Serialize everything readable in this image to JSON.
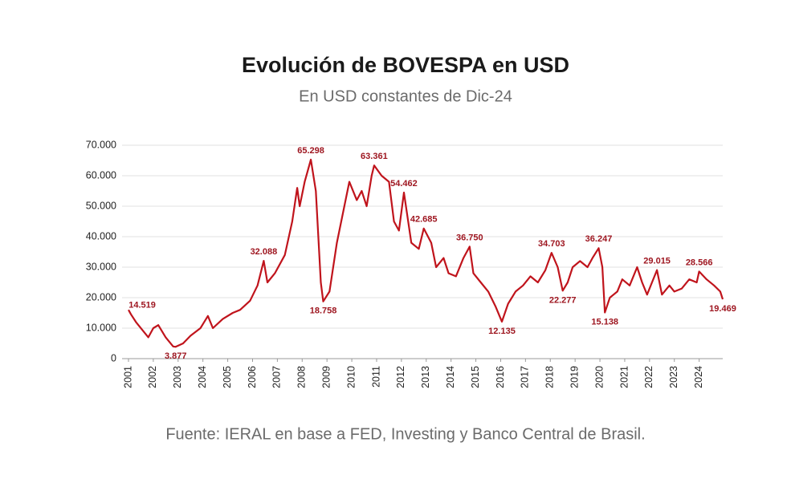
{
  "chart_data": {
    "type": "line",
    "title": "Evolución de BOVESPA en USD",
    "subtitle": "En USD constantes de Dic-24",
    "source": "Fuente: IERAL en base a FED, Investing y Banco Central de Brasil.",
    "xlim": [
      2001,
      2024.95
    ],
    "xticks": [
      2001,
      2002,
      2003,
      2004,
      2005,
      2006,
      2007,
      2008,
      2009,
      2010,
      2011,
      2012,
      2013,
      2014,
      2015,
      2016,
      2017,
      2018,
      2019,
      2020,
      2021,
      2022,
      2023,
      2024
    ],
    "ylim": [
      0,
      70000
    ],
    "yticks": [
      0,
      {
        "value": 10000,
        "label": "10.000"
      },
      {
        "value": 20000,
        "label": "20.000"
      },
      {
        "value": 30000,
        "label": "30.000"
      },
      {
        "value": 40000,
        "label": "40.000"
      },
      {
        "value": 50000,
        "label": "50.000"
      },
      {
        "value": 60000,
        "label": "60.000"
      },
      {
        "value": 70000,
        "label": "70.000"
      }
    ],
    "grid": true,
    "series": [
      {
        "name": "BOVESPA",
        "color": "#c0141c",
        "x": [
          2001.0,
          2001.1,
          2001.3,
          2001.6,
          2001.8,
          2002.0,
          2002.2,
          2002.5,
          2002.8,
          2002.9,
          2003.2,
          2003.5,
          2003.9,
          2004.2,
          2004.4,
          2004.8,
          2005.2,
          2005.5,
          2005.9,
          2006.2,
          2006.45,
          2006.6,
          2006.9,
          2007.3,
          2007.6,
          2007.8,
          2007.9,
          2008.1,
          2008.35,
          2008.55,
          2008.75,
          2008.85,
          2009.1,
          2009.4,
          2009.7,
          2009.9,
          2010.2,
          2010.4,
          2010.6,
          2010.8,
          2010.9,
          2011.2,
          2011.5,
          2011.7,
          2011.9,
          2012.1,
          2012.4,
          2012.7,
          2012.9,
          2013.2,
          2013.4,
          2013.7,
          2013.9,
          2014.2,
          2014.5,
          2014.75,
          2014.9,
          2015.2,
          2015.5,
          2015.8,
          2016.05,
          2016.3,
          2016.6,
          2016.9,
          2017.2,
          2017.5,
          2017.8,
          2018.05,
          2018.3,
          2018.5,
          2018.7,
          2018.9,
          2019.2,
          2019.5,
          2019.7,
          2019.95,
          2020.1,
          2020.2,
          2020.4,
          2020.7,
          2020.9,
          2021.2,
          2021.5,
          2021.7,
          2021.9,
          2022.1,
          2022.3,
          2022.5,
          2022.8,
          2023.0,
          2023.3,
          2023.6,
          2023.9,
          2024.0,
          2024.3,
          2024.6,
          2024.85,
          2024.95
        ],
        "values": [
          16000,
          14519,
          12000,
          9000,
          7000,
          10000,
          11000,
          7000,
          4000,
          3877,
          5000,
          7500,
          10000,
          14000,
          10000,
          13000,
          15000,
          16000,
          19000,
          24000,
          32088,
          25000,
          28000,
          34000,
          45000,
          56000,
          50000,
          58000,
          65298,
          55000,
          25000,
          18758,
          22000,
          38000,
          50000,
          58000,
          52000,
          55000,
          50000,
          60000,
          63361,
          60000,
          58000,
          45000,
          42000,
          54462,
          38000,
          36000,
          42685,
          38000,
          30000,
          33000,
          28000,
          27000,
          33000,
          36750,
          28000,
          25000,
          22000,
          17000,
          12135,
          18000,
          22000,
          24000,
          27000,
          25000,
          29000,
          34703,
          30000,
          22277,
          25000,
          30000,
          32000,
          30000,
          33000,
          36247,
          30000,
          15138,
          20000,
          22000,
          26000,
          24000,
          30000,
          25000,
          21000,
          25000,
          29015,
          21000,
          24000,
          22000,
          23000,
          26000,
          25000,
          28566,
          26000,
          24000,
          22000,
          19469
        ],
        "value_labels": [
          null,
          "14.519",
          null,
          null,
          null,
          null,
          null,
          null,
          null,
          "3.877",
          null,
          null,
          null,
          null,
          null,
          null,
          null,
          null,
          null,
          null,
          "32.088",
          null,
          null,
          null,
          null,
          null,
          null,
          null,
          "65.298",
          null,
          null,
          "18.758",
          null,
          null,
          null,
          null,
          null,
          null,
          null,
          null,
          "63.361",
          null,
          null,
          null,
          null,
          "54.462",
          null,
          null,
          "42.685",
          null,
          null,
          null,
          null,
          null,
          null,
          "36.750",
          null,
          null,
          null,
          null,
          "12.135",
          null,
          null,
          null,
          null,
          null,
          null,
          "34.703",
          null,
          "22.277",
          null,
          null,
          null,
          null,
          null,
          "36.247",
          null,
          "15.138",
          null,
          null,
          null,
          null,
          null,
          null,
          null,
          null,
          "29.015",
          null,
          null,
          null,
          null,
          null,
          null,
          "28.566",
          null,
          null,
          null,
          "19.469"
        ]
      }
    ]
  }
}
